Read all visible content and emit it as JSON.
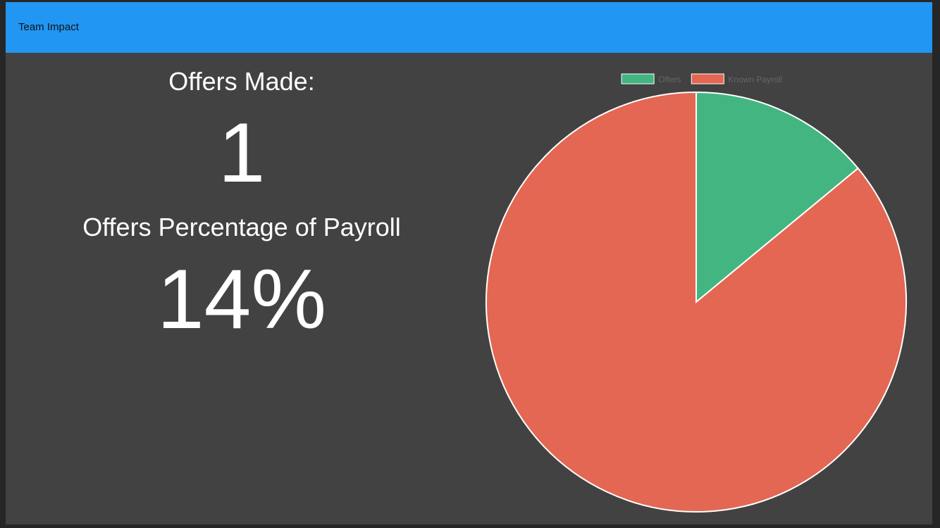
{
  "app": {
    "title": "Team Impact"
  },
  "stats": {
    "offers_label": "Offers Made:",
    "offers_value": "1",
    "pct_label": "Offers Percentage of Payroll",
    "pct_value": "14%"
  },
  "chart_data": {
    "type": "pie",
    "labels": [
      "Offers",
      "Known Payroll"
    ],
    "values": [
      14,
      86
    ],
    "colors": [
      "#43b581",
      "#e36752"
    ],
    "legend_position": "top"
  }
}
